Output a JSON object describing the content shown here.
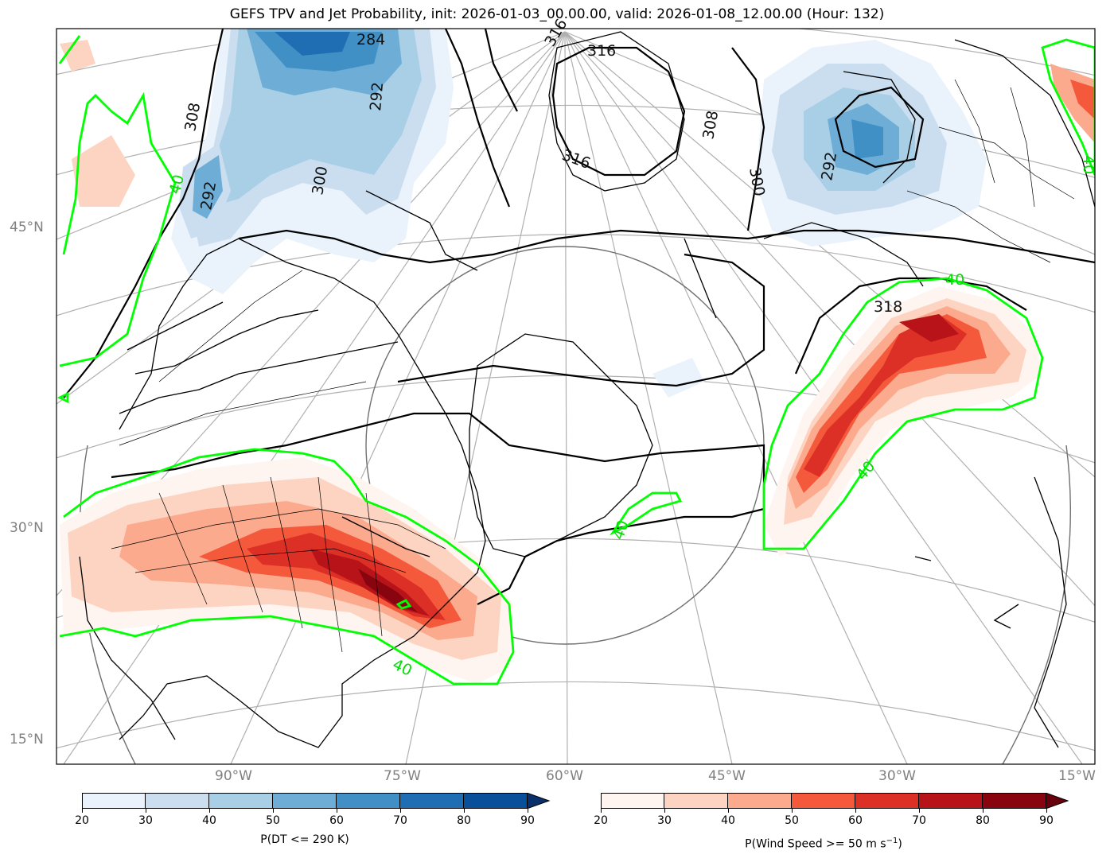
{
  "title": "GEFS TPV and Jet Probability, init: 2026-01-03_00.00.00, valid: 2026-01-08_12.00.00 (Hour: 132)",
  "lat_labels": [
    "45°N",
    "30°N",
    "15°N"
  ],
  "lon_labels": [
    "90°W",
    "75°W",
    "60°W",
    "45°W",
    "30°W",
    "15°W"
  ],
  "contour_labels": {
    "theta": [
      "284",
      "292",
      "292",
      "292",
      "300",
      "300",
      "308",
      "308",
      "316",
      "316",
      "316",
      "318"
    ],
    "jet": [
      "40",
      "40",
      "40",
      "40",
      "40",
      "40"
    ]
  },
  "colorbar_blue": {
    "label": "P(DT <= 290 K)",
    "ticks": [
      "20",
      "30",
      "40",
      "50",
      "60",
      "70",
      "80",
      "90"
    ],
    "colors": [
      "#eaf2fb",
      "#cadef0",
      "#a8cfe5",
      "#6eaed6",
      "#4090c5",
      "#1f6eb3",
      "#09509a"
    ],
    "extend_color": "#08306b"
  },
  "colorbar_red": {
    "label": "P(Wind Speed >= 50 m s",
    "label_sup": "−1",
    "label_end": ")",
    "ticks": [
      "20",
      "30",
      "40",
      "50",
      "60",
      "70",
      "80",
      "90"
    ],
    "colors": [
      "#fff5f0",
      "#fdd4c2",
      "#fcaa8e",
      "#f5593b",
      "#dc2f26",
      "#b71319",
      "#880510"
    ],
    "extend_color": "#67000d"
  },
  "colors": {
    "jet_contour": "#00ff00",
    "theta_contour": "#000000",
    "graticule": "#b0b0b0",
    "coast": "#000000"
  }
}
